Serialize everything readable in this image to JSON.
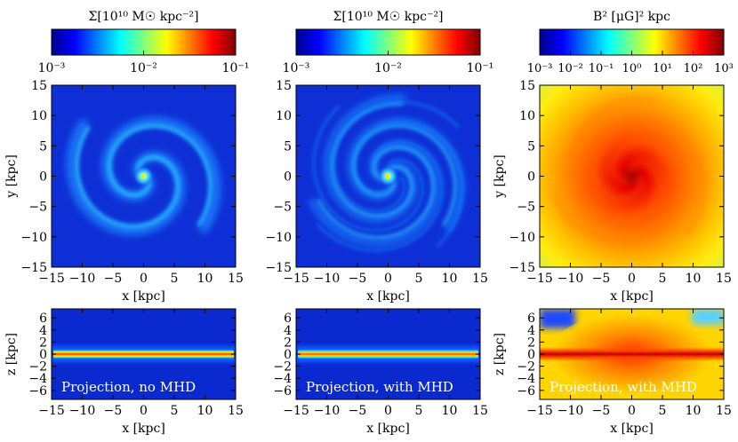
{
  "chart_data": [
    {
      "type": "heatmap",
      "panel": "top-left",
      "image": "face-on spiral galaxy, gas surface density, two-arm spiral",
      "colorbar": {
        "label": "Σ[10¹⁰ M☉ kpc⁻²]",
        "scale": "log",
        "min": 0.001,
        "max": 0.1,
        "ticks": [
          "10⁻³",
          "10⁻²",
          "10⁻¹"
        ],
        "colormap": "jet"
      },
      "xlabel": "x [kpc]",
      "ylabel": "y [kpc]",
      "xlim": [
        -15,
        15
      ],
      "ylim": [
        -15,
        15
      ],
      "xticks": [
        "−15",
        "−10",
        "−5",
        "0",
        "5",
        "10",
        "15"
      ],
      "yticks": [
        "15",
        "10",
        "5",
        "0",
        "−5",
        "−10",
        "−15"
      ]
    },
    {
      "type": "heatmap",
      "panel": "top-middle",
      "image": "face-on spiral galaxy, gas surface density, flocculent multi-arm spiral",
      "colorbar": {
        "label": "Σ[10¹⁰ M☉ kpc⁻²]",
        "scale": "log",
        "min": 0.001,
        "max": 0.1,
        "ticks": [
          "10⁻³",
          "10⁻²",
          "10⁻¹"
        ],
        "colormap": "jet"
      },
      "xlabel": "x [kpc]",
      "ylabel": "",
      "xlim": [
        -15,
        15
      ],
      "ylim": [
        -15,
        15
      ],
      "xticks": [
        "−15",
        "−10",
        "−5",
        "0",
        "5",
        "10",
        "15"
      ],
      "yticks": [
        "15",
        "10",
        "5",
        "0",
        "−5",
        "−10",
        "−15"
      ]
    },
    {
      "type": "heatmap",
      "panel": "top-right",
      "image": "face-on magnetic energy density, peak at centre",
      "colorbar": {
        "label": "B² [μG]² kpc",
        "scale": "log",
        "min": 0.001,
        "max": 1000,
        "ticks": [
          "10⁻³",
          "10⁻²",
          "10⁻¹",
          "10⁰",
          "10¹",
          "10²",
          "10³"
        ],
        "colormap": "jet"
      },
      "xlabel": "x [kpc]",
      "ylabel": "y [kpc]",
      "xlim": [
        -15,
        15
      ],
      "ylim": [
        -15,
        15
      ],
      "xticks": [
        "−15",
        "−10",
        "−5",
        "0",
        "5",
        "10",
        "15"
      ],
      "yticks": [
        "15",
        "10",
        "5",
        "0",
        "−5",
        "−10",
        "−15"
      ]
    },
    {
      "type": "heatmap",
      "panel": "bottom-left",
      "image": "edge-on gas surface density, thin disc",
      "annotation": "Projection, no MHD",
      "xlabel": "x [kpc]",
      "ylabel": "z [kpc]",
      "xlim": [
        -15,
        15
      ],
      "ylim": [
        -7.5,
        7.5
      ],
      "xticks": [
        "−15",
        "−10",
        "−5",
        "0",
        "5",
        "10",
        "15"
      ],
      "yticks": [
        "6",
        "4",
        "2",
        "0",
        "−2",
        "−4",
        "−6"
      ]
    },
    {
      "type": "heatmap",
      "panel": "bottom-middle",
      "image": "edge-on gas surface density, thin disc",
      "annotation": "Projection, with MHD",
      "xlabel": "x [kpc]",
      "ylabel": "",
      "xlim": [
        -15,
        15
      ],
      "ylim": [
        -7.5,
        7.5
      ],
      "xticks": [
        "−15",
        "−10",
        "−5",
        "0",
        "5",
        "10",
        "15"
      ],
      "yticks": [
        "6",
        "4",
        "2",
        "0",
        "−2",
        "−4",
        "−6"
      ]
    },
    {
      "type": "heatmap",
      "panel": "bottom-right",
      "image": "edge-on magnetic energy density, thick halo",
      "annotation": "Projection, with MHD",
      "xlabel": "x [kpc]",
      "ylabel": "z [kpc]",
      "xlim": [
        -15,
        15
      ],
      "ylim": [
        -7.5,
        7.5
      ],
      "xticks": [
        "−15",
        "−10",
        "−5",
        "0",
        "5",
        "10",
        "15"
      ],
      "yticks": [
        "6",
        "4",
        "2",
        "0",
        "−2",
        "−4",
        "−6"
      ]
    }
  ]
}
